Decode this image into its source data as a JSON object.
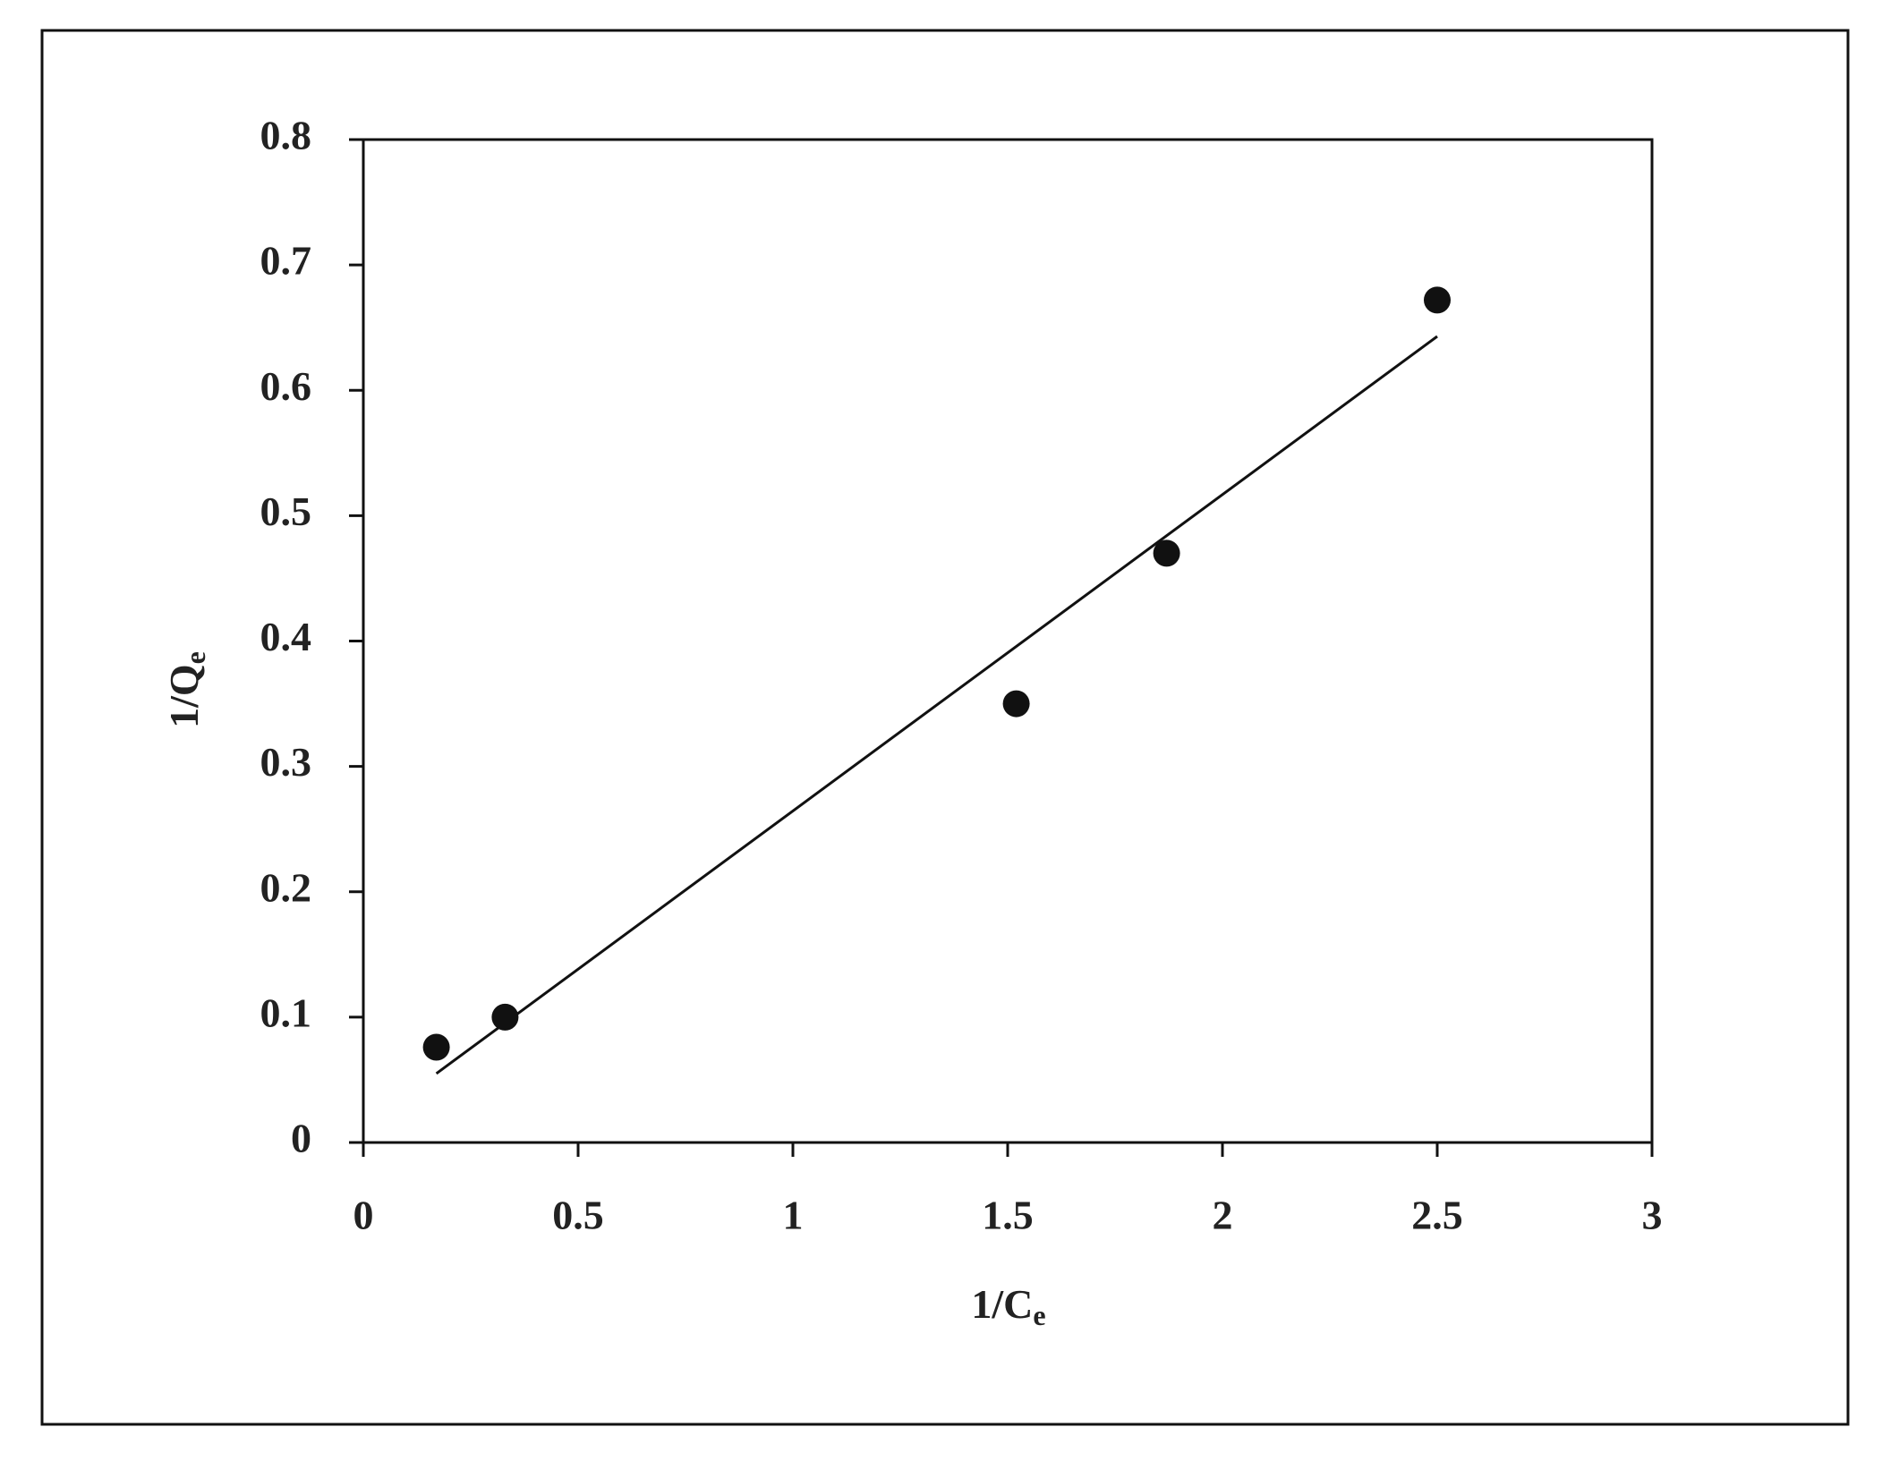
{
  "chart_data": {
    "type": "scatter",
    "xlabel": {
      "text": "1/C",
      "sub": "e"
    },
    "ylabel": {
      "text": "1/Q",
      "sub": "e"
    },
    "x": [
      0.17,
      0.33,
      1.52,
      1.87,
      2.5
    ],
    "values": [
      0.076,
      0.1,
      0.35,
      0.47,
      0.672
    ],
    "color": "#111111",
    "trendline": {
      "x": [
        0.17,
        2.5
      ],
      "values": [
        0.055,
        0.643
      ]
    },
    "xlim": [
      0,
      3
    ],
    "xticks": [
      0,
      0.5,
      1,
      1.5,
      2,
      2.5,
      3
    ],
    "ylim": [
      0,
      0.8
    ],
    "yticks": [
      0,
      0.1,
      0.2,
      0.3,
      0.4,
      0.5,
      0.6,
      0.7,
      0.8
    ],
    "grid": false
  }
}
